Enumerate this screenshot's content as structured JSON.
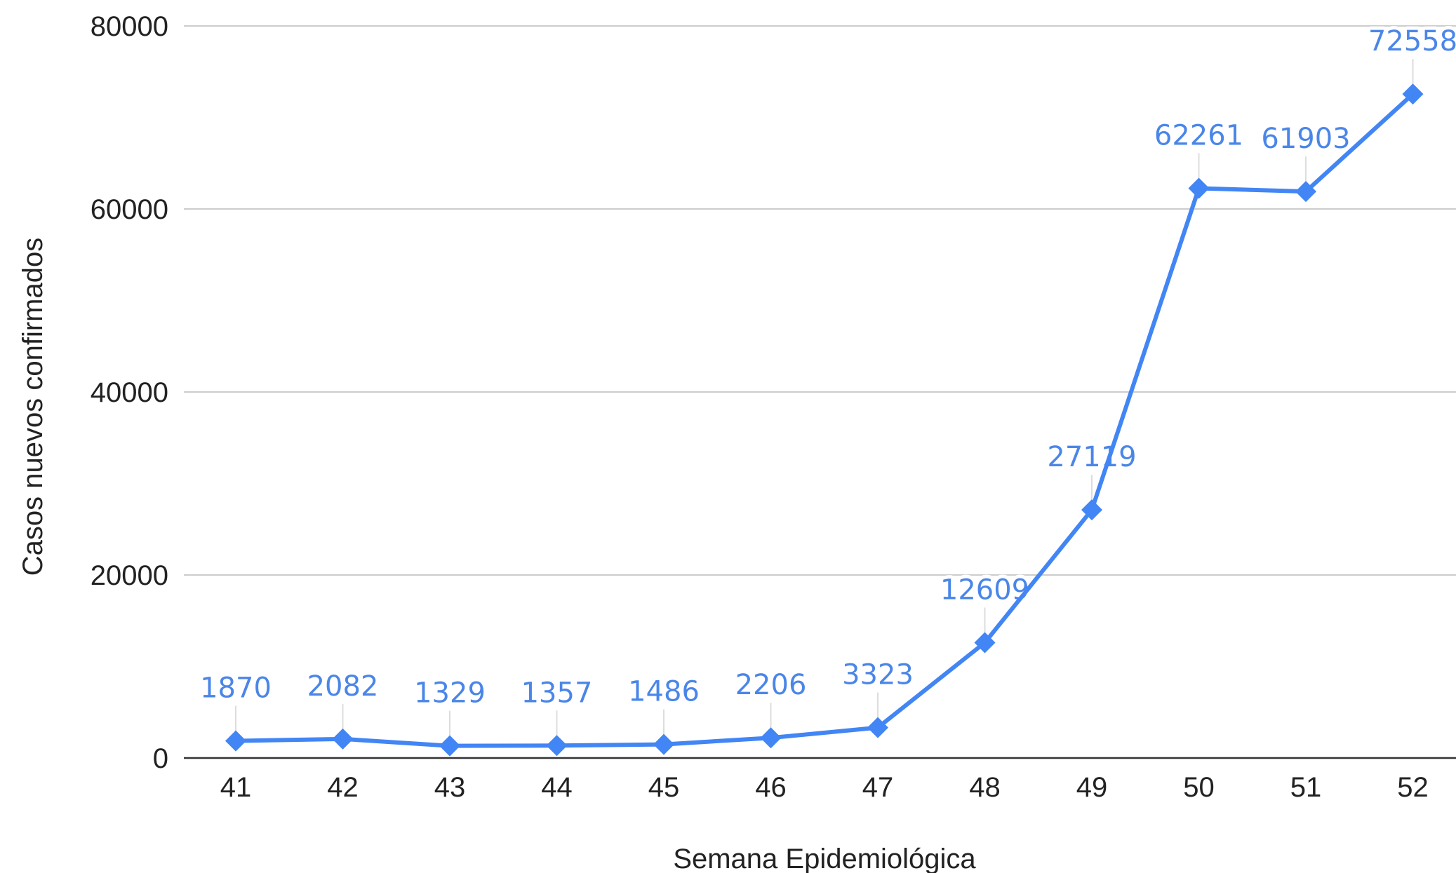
{
  "chart_data": {
    "type": "line",
    "title": "",
    "xlabel": "Semana Epidemiológica",
    "ylabel": "Casos nuevos confirmados",
    "categories": [
      "41",
      "42",
      "43",
      "44",
      "45",
      "46",
      "47",
      "48",
      "49",
      "50",
      "51",
      "52"
    ],
    "series": [
      {
        "values": [
          1870,
          2082,
          1329,
          1357,
          1486,
          2206,
          3323,
          12609,
          27119,
          62261,
          61903,
          72558
        ],
        "color": "#4285f4",
        "marker": "diamond"
      }
    ],
    "ylim": [
      0,
      80000
    ],
    "yticks": [
      "0",
      "20000",
      "40000",
      "60000",
      "80000"
    ],
    "grid": true,
    "legend": "none",
    "data_labels": true,
    "colors": {
      "series": "#4285f4",
      "label": "#4a86e8",
      "grid": "#cccccc",
      "axis": "#333333",
      "text": "#222222",
      "leader": "#dddddd"
    }
  }
}
